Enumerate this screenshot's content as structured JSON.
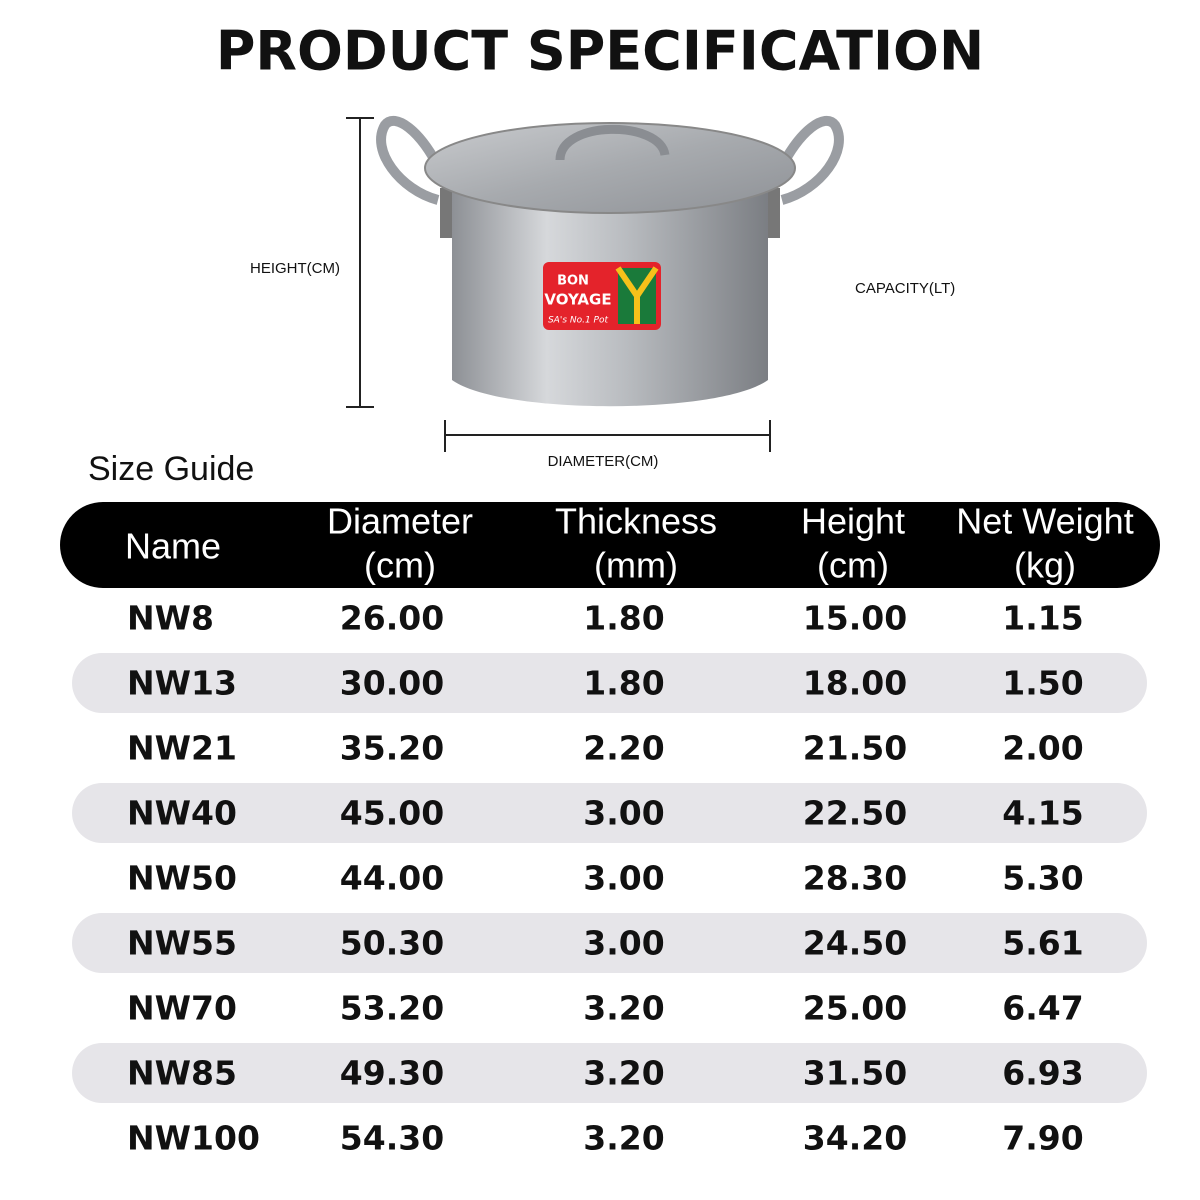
{
  "header": {
    "title": "PRODUCT SPECIFICATION"
  },
  "diagram": {
    "height_label": "HEIGHT(CM)",
    "capacity_label": "CAPACITY(LT)",
    "diameter_label": "DIAMETER(CM)",
    "logo": {
      "line1": "BON",
      "line2": "VOYAGE",
      "tagline": "SA's No.1 Pot"
    }
  },
  "table": {
    "caption": "Size Guide",
    "header": [
      [
        "Name"
      ],
      [
        "Diameter",
        "(cm)"
      ],
      [
        "Thickness",
        "(mm)"
      ],
      [
        "Height",
        "(cm)"
      ],
      [
        "Net Weight",
        "(kg)"
      ]
    ],
    "rows": [
      [
        "NW8",
        "26.00",
        "1.80",
        "15.00",
        "1.15"
      ],
      [
        "NW13",
        "30.00",
        "1.80",
        "18.00",
        "1.50"
      ],
      [
        "NW21",
        "35.20",
        "2.20",
        "21.50",
        "2.00"
      ],
      [
        "NW40",
        "45.00",
        "3.00",
        "22.50",
        "4.15"
      ],
      [
        "NW50",
        "44.00",
        "3.00",
        "28.30",
        "5.30"
      ],
      [
        "NW55",
        "50.30",
        "3.00",
        "24.50",
        "5.61"
      ],
      [
        "NW70",
        "53.20",
        "3.20",
        "25.00",
        "6.47"
      ],
      [
        "NW85",
        "49.30",
        "3.20",
        "31.50",
        "6.93"
      ],
      [
        "NW100",
        "54.30",
        "3.20",
        "34.20",
        "7.90"
      ]
    ]
  }
}
